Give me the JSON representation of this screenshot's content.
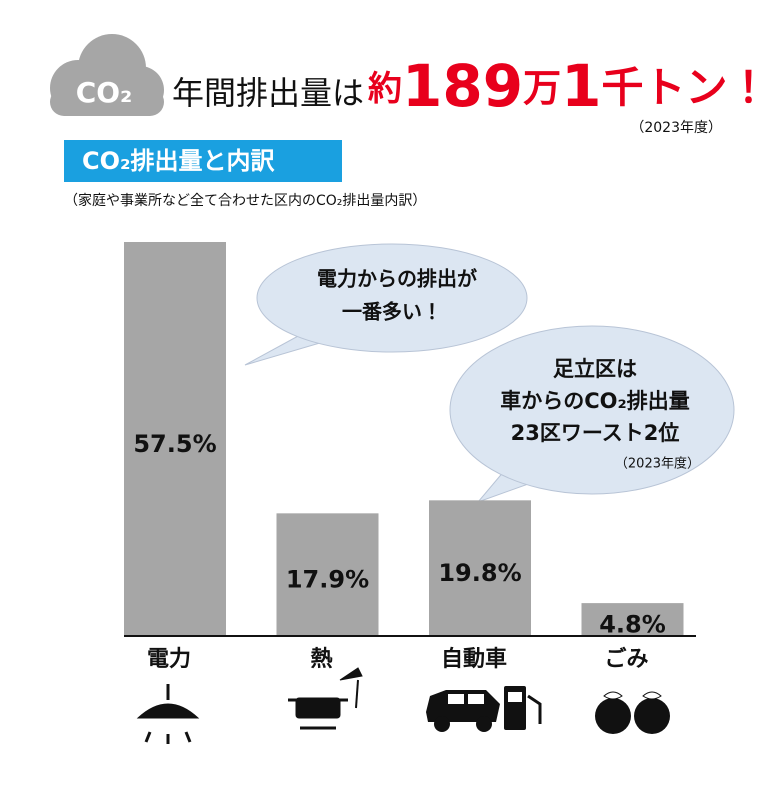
{
  "chart_data": {
    "type": "bar",
    "icon_label": "CO₂",
    "headline": {
      "lead": "年間排出量は",
      "amount_parts": [
        "約",
        "189",
        "万",
        "1",
        "千トン！"
      ],
      "year": "（2023年度）"
    },
    "title": "CO₂排出量と内訳",
    "subtitle": "（家庭や事業所など全て合わせた区内のCO₂排出量内訳）",
    "categories": [
      "電力",
      "熱",
      "自動車",
      "ごみ"
    ],
    "values": [
      57.5,
      17.9,
      19.8,
      4.8
    ],
    "value_labels": [
      "57.5%",
      "17.9%",
      "19.8%",
      "4.8%"
    ],
    "color": "#a6a6a6",
    "annotations": [
      {
        "lines": [
          "電力からの排出が",
          "一番多い！"
        ]
      },
      {
        "lines": [
          "足立区は",
          "車からのCO₂排出量",
          "23区ワースト2位"
        ],
        "note": "（2023年度）"
      }
    ]
  }
}
